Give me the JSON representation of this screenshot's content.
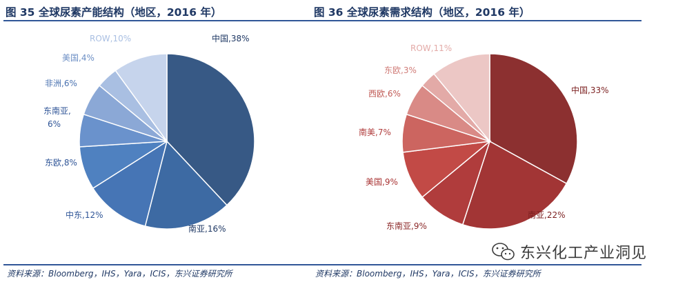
{
  "chart_data": [
    {
      "type": "pie",
      "title": "图 35 全球尿素产能结构（地区，2016 年）",
      "source": "资料来源：Bloomberg，IHS，Yara，ICIS，东兴证券研究所",
      "slices": [
        {
          "name": "中国",
          "value": 38,
          "label": "中国,38%",
          "color": "#375985",
          "label_color": "#1f3864"
        },
        {
          "name": "南亚",
          "value": 16,
          "label": "南亚,16%",
          "color": "#3d6aa3",
          "label_color": "#1f3864"
        },
        {
          "name": "中东",
          "value": 12,
          "label": "中东,12%",
          "color": "#4675b5",
          "label_color": "#2f5597"
        },
        {
          "name": "东欧",
          "value": 8,
          "label": "东欧,8%",
          "color": "#4f81c0",
          "label_color": "#2f5597"
        },
        {
          "name": "东南亚",
          "value": 6,
          "label": "东南亚,\n6%",
          "color": "#6a92cc",
          "label_color": "#2f5597"
        },
        {
          "name": "非洲",
          "value": 6,
          "label": "非洲,6%",
          "color": "#8ba8d6",
          "label_color": "#4a72b0"
        },
        {
          "name": "美国",
          "value": 4,
          "label": "美国,4%",
          "color": "#a9bfe2",
          "label_color": "#6b8ec4"
        },
        {
          "name": "ROW",
          "value": 10,
          "label": "ROW,10%",
          "color": "#c6d4ec",
          "label_color": "#a9bfe2"
        }
      ]
    },
    {
      "type": "pie",
      "title": "图 36 全球尿素需求结构（地区，2016 年）",
      "source": "资料来源：Bloomberg，IHS，Yara，ICIS，东兴证券研究所",
      "slices": [
        {
          "name": "中国",
          "value": 33,
          "label": "中国,33%",
          "color": "#8c3030",
          "label_color": "#7b1f1f"
        },
        {
          "name": "南亚",
          "value": 22,
          "label": "南亚,22%",
          "color": "#a23535",
          "label_color": "#7b1f1f"
        },
        {
          "name": "东南亚",
          "value": 9,
          "label": "东南亚,9%",
          "color": "#b03c3c",
          "label_color": "#8c2a2a"
        },
        {
          "name": "美国",
          "value": 9,
          "label": "美国,9%",
          "color": "#c24a46",
          "label_color": "#a83232"
        },
        {
          "name": "南美",
          "value": 7,
          "label": "南美,7%",
          "color": "#cc6560",
          "label_color": "#b03c3c"
        },
        {
          "name": "西欧",
          "value": 6,
          "label": "西欧,6%",
          "color": "#d98a86",
          "label_color": "#c05a55"
        },
        {
          "name": "东欧",
          "value": 3,
          "label": "东欧,3%",
          "color": "#e3aaa7",
          "label_color": "#d07c78"
        },
        {
          "name": "ROW",
          "value": 11,
          "label": "ROW,11%",
          "color": "#ecc7c5",
          "label_color": "#e3aaa7"
        }
      ]
    }
  ],
  "watermark": {
    "text": "东兴化工产业洞见",
    "icon": "wechat-icon"
  }
}
